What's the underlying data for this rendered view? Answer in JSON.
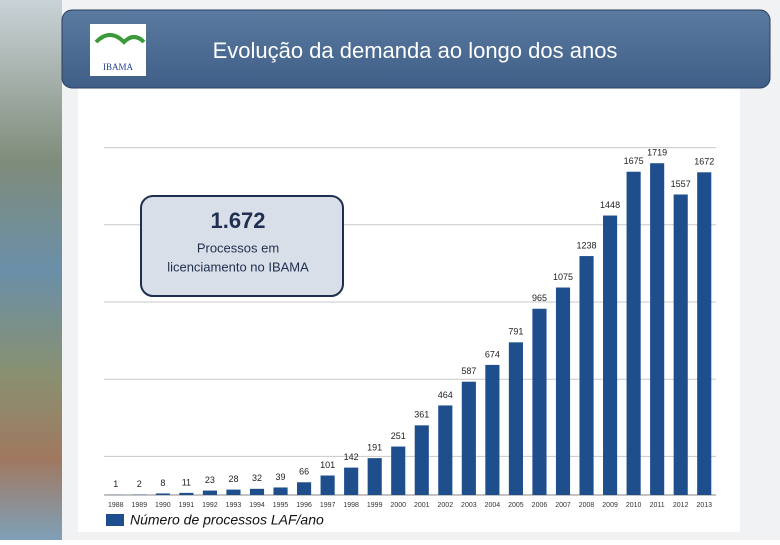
{
  "logo_text": "IBAMA",
  "chart_data": {
    "type": "bar",
    "title": "Evolução da demanda ao longo dos anos",
    "categories": [
      "1988",
      "1989",
      "1990",
      "1991",
      "1992",
      "1993",
      "1994",
      "1995",
      "1996",
      "1997",
      "1998",
      "1999",
      "2000",
      "2001",
      "2002",
      "2003",
      "2004",
      "2005",
      "2006",
      "2007",
      "2008",
      "2009",
      "2010",
      "2011",
      "2012",
      "2013"
    ],
    "series": [
      {
        "name": "Número de processos LAF/ano",
        "color": "#1f4e8c",
        "values": [
          1,
          2,
          8,
          11,
          23,
          28,
          32,
          39,
          66,
          101,
          142,
          191,
          251,
          361,
          464,
          587,
          674,
          791,
          965,
          1075,
          1238,
          1448,
          1675,
          1719,
          1557,
          1672
        ]
      }
    ],
    "ylim": [
      0,
      2000
    ],
    "yticks": [
      200,
      600,
      1000,
      1400,
      1800
    ],
    "grid": true,
    "annotations": {
      "highlight": "1.672",
      "text": [
        "Processos em",
        "licenciamento no IBAMA"
      ]
    }
  }
}
